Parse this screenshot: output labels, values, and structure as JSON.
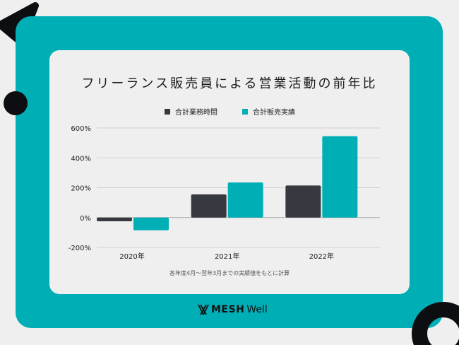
{
  "title": "フリーランス販売員による営業活動の前年比",
  "note": "各年度4月〜翌年3月までの実績値をもとに計算",
  "logo": {
    "bold": "MESH",
    "light": "Well"
  },
  "colors": {
    "frame": "#00aeb5",
    "dark": "#363940",
    "teal": "#00aeb5",
    "decor": "#0d0e12"
  },
  "chart_data": {
    "type": "bar",
    "title": "フリーランス販売員による営業活動の前年比",
    "categories": [
      "2020年",
      "2021年",
      "2022年"
    ],
    "series": [
      {
        "name": "合計業務時間",
        "color": "#363940",
        "values": [
          -25,
          155,
          215
        ]
      },
      {
        "name": "合計販売実績",
        "color": "#00aeb5",
        "values": [
          -85,
          235,
          545
        ]
      }
    ],
    "yticks": [
      600,
      400,
      200,
      0,
      -200
    ],
    "ytick_labels": [
      "600%",
      "400%",
      "200%",
      "0%",
      "-200%"
    ],
    "ylim": [
      -200,
      600
    ],
    "grid": true,
    "legend": "top-center"
  }
}
